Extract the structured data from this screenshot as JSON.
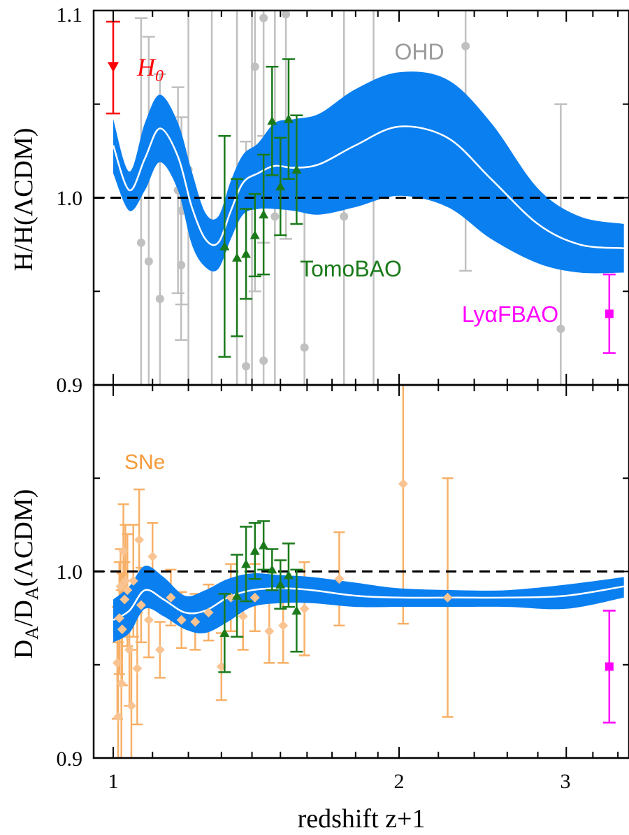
{
  "colors": {
    "band": "#0a7ff0",
    "mean_line": "#ffffff",
    "reference": "#000000",
    "ohd": "#c0c0c0",
    "tomobao": "#1a7a1a",
    "lyafbao": "#ff00ff",
    "h0": "#ff0000",
    "sne": "#f7b068",
    "sne_marker": "#f9c491",
    "frame": "#000000"
  },
  "chart_data": [
    {
      "type": "scatter",
      "panel": "top",
      "ylabel_main": "H/H(ΛCDM)",
      "xscale": "log",
      "xlim": [
        0.97,
        3.45
      ],
      "ylim": [
        0.9,
        1.1
      ],
      "ytick_labels": [
        "0.9",
        "1.0",
        "1.1"
      ],
      "ytick_values": [
        0.9,
        1.0,
        1.1
      ],
      "reference_line": 1.0,
      "band": {
        "x": [
          1.0,
          1.04,
          1.08,
          1.12,
          1.17,
          1.21,
          1.25,
          1.29,
          1.33,
          1.37,
          1.42,
          1.48,
          1.55,
          1.65,
          1.8,
          2.0,
          2.25,
          2.5,
          2.8,
          3.1,
          3.45
        ],
        "mean": [
          1.028,
          1.004,
          1.021,
          1.037,
          1.022,
          0.995,
          0.978,
          0.976,
          0.993,
          1.008,
          1.013,
          1.017,
          1.016,
          1.018,
          1.028,
          1.038,
          1.032,
          1.01,
          0.986,
          0.975,
          0.973
        ],
        "lower": [
          1.013,
          0.993,
          1.004,
          1.019,
          1.004,
          0.975,
          0.963,
          0.962,
          0.978,
          0.991,
          0.994,
          0.994,
          0.993,
          0.991,
          0.995,
          1.001,
          0.995,
          0.978,
          0.965,
          0.96,
          0.96
        ],
        "upper": [
          1.042,
          1.014,
          1.04,
          1.055,
          1.04,
          1.014,
          0.992,
          0.99,
          1.009,
          1.023,
          1.029,
          1.04,
          1.042,
          1.045,
          1.058,
          1.067,
          1.063,
          1.04,
          1.005,
          0.99,
          0.986
        ]
      },
      "series": [
        {
          "name": "OHD",
          "marker": "circle",
          "points": [
            {
              "x": 1.07,
              "y": 0.976,
              "err": 0.12
            },
            {
              "x": 1.09,
              "y": 0.966,
              "err": 0.12
            },
            {
              "x": 1.12,
              "y": 0.946,
              "err": 0.12
            },
            {
              "x": 1.17,
              "y": 1.004,
              "err": 0.055
            },
            {
              "x": 1.18,
              "y": 0.993,
              "err": 0.05
            },
            {
              "x": 1.179,
              "y": 0.964,
              "err": 0.04
            },
            {
              "x": 1.2,
              "y": 1.015,
              "err": 0.12
            },
            {
              "x": 1.27,
              "y": 0.981,
              "err": 0.12
            },
            {
              "x": 1.35,
              "y": 1.01,
              "err": 0.12
            },
            {
              "x": 1.38,
              "y": 0.91,
              "err": 0.12
            },
            {
              "x": 1.4,
              "y": 1.016,
              "err": 0.12
            },
            {
              "x": 1.41,
              "y": 1.07,
              "err": 0.12
            },
            {
              "x": 1.44,
              "y": 0.913,
              "err": 0.12
            },
            {
              "x": 1.44,
              "y": 1.096,
              "err": 0.12
            },
            {
              "x": 1.48,
              "y": 0.99,
              "err": 0.12
            },
            {
              "x": 1.52,
              "y": 1.098,
              "err": 0.12
            },
            {
              "x": 1.59,
              "y": 0.92,
              "err": 0.12
            },
            {
              "x": 1.75,
              "y": 0.99,
              "err": 0.12
            },
            {
              "x": 1.88,
              "y": 1.02,
              "err": 0.12
            },
            {
              "x": 2.35,
              "y": 1.081,
              "err": 0.12
            },
            {
              "x": 2.96,
              "y": 0.93,
              "err": 0.12
            }
          ]
        },
        {
          "name": "TomoBAO",
          "marker": "triangle",
          "points": [
            {
              "x": 1.31,
              "y": 0.974,
              "err": 0.059
            },
            {
              "x": 1.35,
              "y": 0.968,
              "err": 0.042
            },
            {
              "x": 1.38,
              "y": 0.97,
              "err": 0.024
            },
            {
              "x": 1.41,
              "y": 0.98,
              "err": 0.022
            },
            {
              "x": 1.44,
              "y": 0.991,
              "err": 0.032
            },
            {
              "x": 1.47,
              "y": 1.041,
              "err": 0.029
            },
            {
              "x": 1.5,
              "y": 1.006,
              "err": 0.026
            },
            {
              "x": 1.53,
              "y": 1.042,
              "err": 0.032
            },
            {
              "x": 1.56,
              "y": 1.015,
              "err": 0.029
            }
          ]
        },
        {
          "name": "LyαFBAO",
          "marker": "square",
          "points": [
            {
              "x": 3.33,
              "y": 0.938,
              "err": 0.021
            }
          ]
        },
        {
          "name": "H0",
          "marker": "triangle-down",
          "points": [
            {
              "x": 1.0,
              "y": 1.07,
              "err_low": 0.025,
              "err_high": 0.024
            }
          ]
        }
      ],
      "annotations": [
        {
          "text": "OHD",
          "at": "upper-right"
        },
        {
          "text": "TomoBAO",
          "at": "center"
        },
        {
          "text": "LyαFBAO",
          "at": "lower-right"
        },
        {
          "text": "H",
          "subscript": "0",
          "at": "upper-left"
        }
      ]
    },
    {
      "type": "scatter",
      "panel": "bottom",
      "ylabel_main": "D",
      "ylabel_sub": "A",
      "ylabel_mid": "/D",
      "ylabel_sub2": "A",
      "ylabel_tail": "(ΛCDM)",
      "xlabel": "redshift z+1",
      "xscale": "log",
      "xlim": [
        0.97,
        3.45
      ],
      "ylim": [
        0.9,
        1.1
      ],
      "xtick_labels": [
        "1",
        "2",
        "3"
      ],
      "xtick_values": [
        1,
        2,
        3
      ],
      "ytick_labels": [
        "0.9",
        "1.0"
      ],
      "ytick_values": [
        0.9,
        1.0
      ],
      "reference_line": 1.0,
      "band": {
        "x": [
          1.0,
          1.04,
          1.08,
          1.13,
          1.19,
          1.25,
          1.32,
          1.4,
          1.5,
          1.62,
          1.8,
          2.0,
          2.3,
          2.6,
          3.0,
          3.45
        ],
        "mean": [
          0.974,
          0.979,
          0.99,
          0.985,
          0.978,
          0.979,
          0.986,
          0.99,
          0.991,
          0.99,
          0.987,
          0.986,
          0.986,
          0.986,
          0.987,
          0.992
        ],
        "lower": [
          0.962,
          0.967,
          0.98,
          0.976,
          0.969,
          0.967,
          0.973,
          0.981,
          0.983,
          0.983,
          0.981,
          0.981,
          0.981,
          0.981,
          0.98,
          0.986
        ],
        "upper": [
          0.985,
          0.992,
          1.003,
          0.997,
          0.987,
          0.99,
          0.996,
          0.999,
          0.998,
          0.997,
          0.994,
          0.991,
          0.99,
          0.99,
          0.993,
          0.997
        ]
      },
      "series": [
        {
          "name": "SNe",
          "marker": "diamond",
          "points": [
            {
              "x": 1.01,
              "y": 0.951,
              "err": 0.03
            },
            {
              "x": 1.012,
              "y": 0.922,
              "err": 0.04
            },
            {
              "x": 1.015,
              "y": 0.975,
              "err": 0.03
            },
            {
              "x": 1.018,
              "y": 0.992,
              "err": 0.02
            },
            {
              "x": 1.02,
              "y": 0.94,
              "err": 0.05
            },
            {
              "x": 1.022,
              "y": 0.969,
              "err": 0.03
            },
            {
              "x": 1.025,
              "y": 1.011,
              "err": 0.025
            },
            {
              "x": 1.028,
              "y": 0.985,
              "err": 0.02
            },
            {
              "x": 1.03,
              "y": 0.995,
              "err": 0.03
            },
            {
              "x": 1.035,
              "y": 0.99,
              "err": 0.03
            },
            {
              "x": 1.04,
              "y": 0.958,
              "err": 0.03
            },
            {
              "x": 1.045,
              "y": 0.928,
              "err": 0.03
            },
            {
              "x": 1.05,
              "y": 0.995,
              "err": 0.03
            },
            {
              "x": 1.06,
              "y": 0.948,
              "err": 0.03
            },
            {
              "x": 1.065,
              "y": 1.017,
              "err": 0.027
            },
            {
              "x": 1.07,
              "y": 0.982,
              "err": 0.02
            },
            {
              "x": 1.09,
              "y": 0.974,
              "err": 0.02
            },
            {
              "x": 1.1,
              "y": 1.008,
              "err": 0.018
            },
            {
              "x": 1.12,
              "y": 0.958,
              "err": 0.015
            },
            {
              "x": 1.15,
              "y": 0.986,
              "err": 0.015
            },
            {
              "x": 1.18,
              "y": 0.974,
              "err": 0.015
            },
            {
              "x": 1.22,
              "y": 0.973,
              "err": 0.015
            },
            {
              "x": 1.26,
              "y": 0.978,
              "err": 0.015
            },
            {
              "x": 1.3,
              "y": 0.949,
              "err": 0.018
            },
            {
              "x": 1.33,
              "y": 0.986,
              "err": 0.018
            },
            {
              "x": 1.37,
              "y": 0.976,
              "err": 0.018
            },
            {
              "x": 1.41,
              "y": 0.986,
              "err": 0.018
            },
            {
              "x": 1.46,
              "y": 0.968,
              "err": 0.017
            },
            {
              "x": 1.51,
              "y": 0.971,
              "err": 0.02
            },
            {
              "x": 1.59,
              "y": 0.98,
              "err": 0.025
            },
            {
              "x": 1.73,
              "y": 0.996,
              "err": 0.025
            },
            {
              "x": 2.02,
              "y": 1.047,
              "err": 0.075
            },
            {
              "x": 2.25,
              "y": 0.986,
              "err": 0.064
            }
          ]
        },
        {
          "name": "TomoBAO",
          "marker": "triangle",
          "points": [
            {
              "x": 1.31,
              "y": 0.967,
              "err": 0.021
            },
            {
              "x": 1.35,
              "y": 0.987,
              "err": 0.022
            },
            {
              "x": 1.38,
              "y": 1.004,
              "err": 0.02
            },
            {
              "x": 1.41,
              "y": 1.011,
              "err": 0.015
            },
            {
              "x": 1.44,
              "y": 1.014,
              "err": 0.013
            },
            {
              "x": 1.47,
              "y": 1.001,
              "err": 0.011
            },
            {
              "x": 1.5,
              "y": 0.993,
              "err": 0.013
            },
            {
              "x": 1.53,
              "y": 0.998,
              "err": 0.017
            },
            {
              "x": 1.56,
              "y": 0.979,
              "err": 0.022
            }
          ]
        },
        {
          "name": "LyαFBAO",
          "marker": "square",
          "points": [
            {
              "x": 3.33,
              "y": 0.949,
              "err": 0.03
            }
          ]
        }
      ],
      "annotations": [
        {
          "text": "SNe",
          "at": "upper-left"
        }
      ]
    }
  ]
}
